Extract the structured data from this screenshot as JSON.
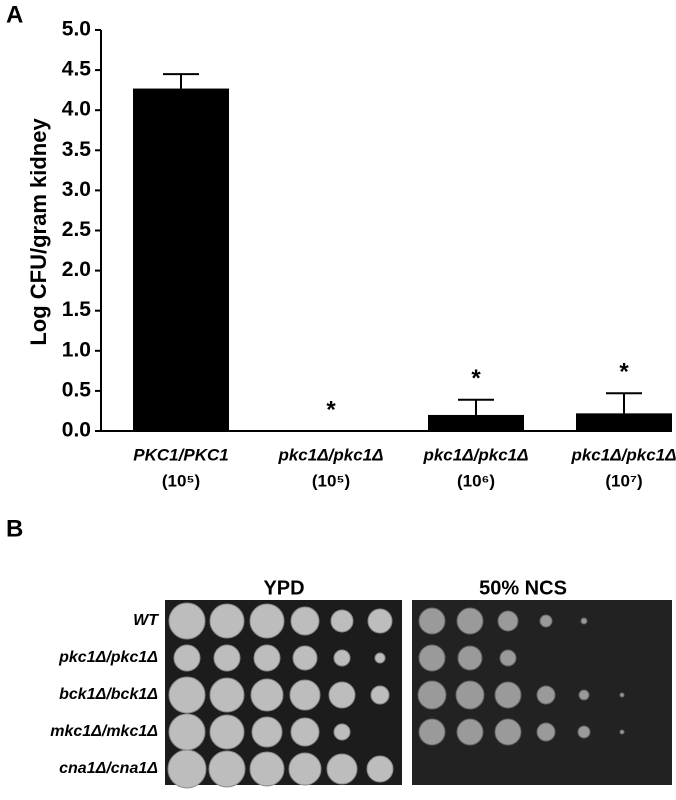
{
  "chart_data": {
    "type": "bar",
    "panel_label": "A",
    "y_label": "Log CFU/gram kidney",
    "categories": [
      "PKC1/PKC1",
      "pkc1Δ/pkc1Δ",
      "pkc1Δ/pkc1Δ",
      "pkc1Δ/pkc1Δ"
    ],
    "category_sublabels": [
      "(10⁵)",
      "(10⁵)",
      "(10⁶)",
      "(10⁷)"
    ],
    "values": [
      4.27,
      0,
      0.2,
      0.22
    ],
    "errors": [
      0.18,
      0,
      0.19,
      0.25
    ],
    "annotations": [
      null,
      "*",
      "*",
      "*"
    ],
    "color": "#000000",
    "ylim": [
      0,
      5
    ],
    "yticks": [
      {
        "value": 0,
        "label": "0.0"
      },
      0.5,
      {
        "value": 1,
        "label": "1.0"
      },
      1.5,
      {
        "value": 2,
        "label": "2.0"
      },
      2.5,
      {
        "value": 3,
        "label": "3.0"
      },
      3.5,
      {
        "value": 4,
        "label": "4.0"
      },
      4.5,
      {
        "value": 5,
        "label": "5.0"
      }
    ],
    "grid": false
  },
  "plate_panel": {
    "panel_label": "B",
    "columns": [
      "YPD",
      "50% NCS"
    ],
    "rows": [
      "WT",
      "pkc1Δ/pkc1Δ",
      "bck1Δ/bck1Δ",
      "mkc1Δ/mkc1Δ",
      "cna1Δ/cna1Δ"
    ]
  }
}
